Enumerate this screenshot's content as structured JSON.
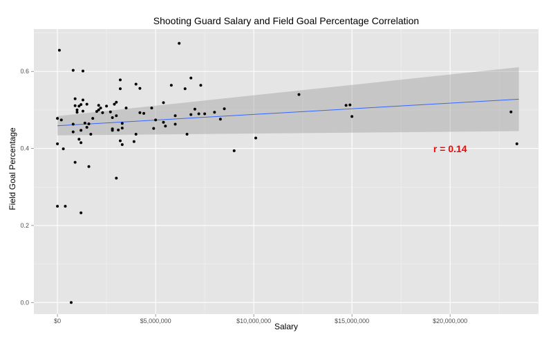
{
  "chart_data": {
    "type": "scatter",
    "title": "Shooting Guard Salary and Field Goal Percentage Correlation",
    "xlabel": "Salary",
    "ylabel": "Field Goal Percentage",
    "xlim": [
      -1200000,
      24500000
    ],
    "ylim": [
      -0.03,
      0.71
    ],
    "x_ticks": [
      0,
      5000000,
      10000000,
      15000000,
      20000000
    ],
    "x_tick_labels": [
      "$0",
      "$5,000,000",
      "$10,000,000",
      "$15,000,000",
      "$20,000,000"
    ],
    "y_ticks": [
      0.0,
      0.2,
      0.4,
      0.6
    ],
    "y_tick_labels": [
      "0.0",
      "0.2",
      "0.4",
      "0.6"
    ],
    "grid": true,
    "background": "#e5e5e5",
    "point_color": "#000000",
    "smooth": {
      "method": "linear",
      "line_color": "#3366ff",
      "band_color": "#999999",
      "x": [
        0,
        23500000
      ],
      "fit": [
        0.459,
        0.528
      ],
      "lower": [
        0.434,
        0.445
      ],
      "upper": [
        0.484,
        0.611
      ]
    },
    "annotation": {
      "text": "r = 0.14",
      "x": 20000000,
      "y": 0.399,
      "color": "#ff0000"
    },
    "points": [
      [
        100000,
        0.655
      ],
      [
        0,
        0.478
      ],
      [
        200000,
        0.474
      ],
      [
        0,
        0.412
      ],
      [
        300000,
        0.399
      ],
      [
        0,
        0.25
      ],
      [
        400000,
        0.25
      ],
      [
        700000,
        0.0
      ],
      [
        800000,
        0.603
      ],
      [
        1300000,
        0.601
      ],
      [
        900000,
        0.529
      ],
      [
        900000,
        0.511
      ],
      [
        1000000,
        0.5
      ],
      [
        1000000,
        0.494
      ],
      [
        1200000,
        0.514
      ],
      [
        1300000,
        0.526
      ],
      [
        1300000,
        0.497
      ],
      [
        1100000,
        0.51
      ],
      [
        800000,
        0.463
      ],
      [
        800000,
        0.443
      ],
      [
        900000,
        0.364
      ],
      [
        1100000,
        0.424
      ],
      [
        1200000,
        0.415
      ],
      [
        1200000,
        0.447
      ],
      [
        1400000,
        0.466
      ],
      [
        1500000,
        0.455
      ],
      [
        1600000,
        0.464
      ],
      [
        1500000,
        0.515
      ],
      [
        1600000,
        0.353
      ],
      [
        1200000,
        0.233
      ],
      [
        1700000,
        0.437
      ],
      [
        1800000,
        0.478
      ],
      [
        2000000,
        0.496
      ],
      [
        2100000,
        0.5
      ],
      [
        2100000,
        0.512
      ],
      [
        2200000,
        0.505
      ],
      [
        2300000,
        0.493
      ],
      [
        2500000,
        0.51
      ],
      [
        2700000,
        0.495
      ],
      [
        2800000,
        0.451
      ],
      [
        2800000,
        0.447
      ],
      [
        2800000,
        0.48
      ],
      [
        2900000,
        0.515
      ],
      [
        3000000,
        0.323
      ],
      [
        3000000,
        0.52
      ],
      [
        3000000,
        0.485
      ],
      [
        3100000,
        0.448
      ],
      [
        3200000,
        0.555
      ],
      [
        3200000,
        0.578
      ],
      [
        3200000,
        0.42
      ],
      [
        3300000,
        0.41
      ],
      [
        3300000,
        0.453
      ],
      [
        3300000,
        0.465
      ],
      [
        3500000,
        0.505
      ],
      [
        3900000,
        0.418
      ],
      [
        4000000,
        0.567
      ],
      [
        4000000,
        0.437
      ],
      [
        4200000,
        0.493
      ],
      [
        4200000,
        0.556
      ],
      [
        4400000,
        0.491
      ],
      [
        4800000,
        0.505
      ],
      [
        4900000,
        0.452
      ],
      [
        5000000,
        0.474
      ],
      [
        5400000,
        0.519
      ],
      [
        5400000,
        0.468
      ],
      [
        5500000,
        0.458
      ],
      [
        5800000,
        0.564
      ],
      [
        6000000,
        0.485
      ],
      [
        6000000,
        0.463
      ],
      [
        6200000,
        0.673
      ],
      [
        6500000,
        0.555
      ],
      [
        6600000,
        0.437
      ],
      [
        6800000,
        0.583
      ],
      [
        6800000,
        0.488
      ],
      [
        7000000,
        0.502
      ],
      [
        7200000,
        0.49
      ],
      [
        7300000,
        0.564
      ],
      [
        7500000,
        0.49
      ],
      [
        8000000,
        0.494
      ],
      [
        8300000,
        0.476
      ],
      [
        8500000,
        0.503
      ],
      [
        9000000,
        0.394
      ],
      [
        10100000,
        0.427
      ],
      [
        12300000,
        0.54
      ],
      [
        14700000,
        0.512
      ],
      [
        14900000,
        0.513
      ],
      [
        15000000,
        0.483
      ],
      [
        23100000,
        0.495
      ],
      [
        23400000,
        0.412
      ]
    ]
  }
}
